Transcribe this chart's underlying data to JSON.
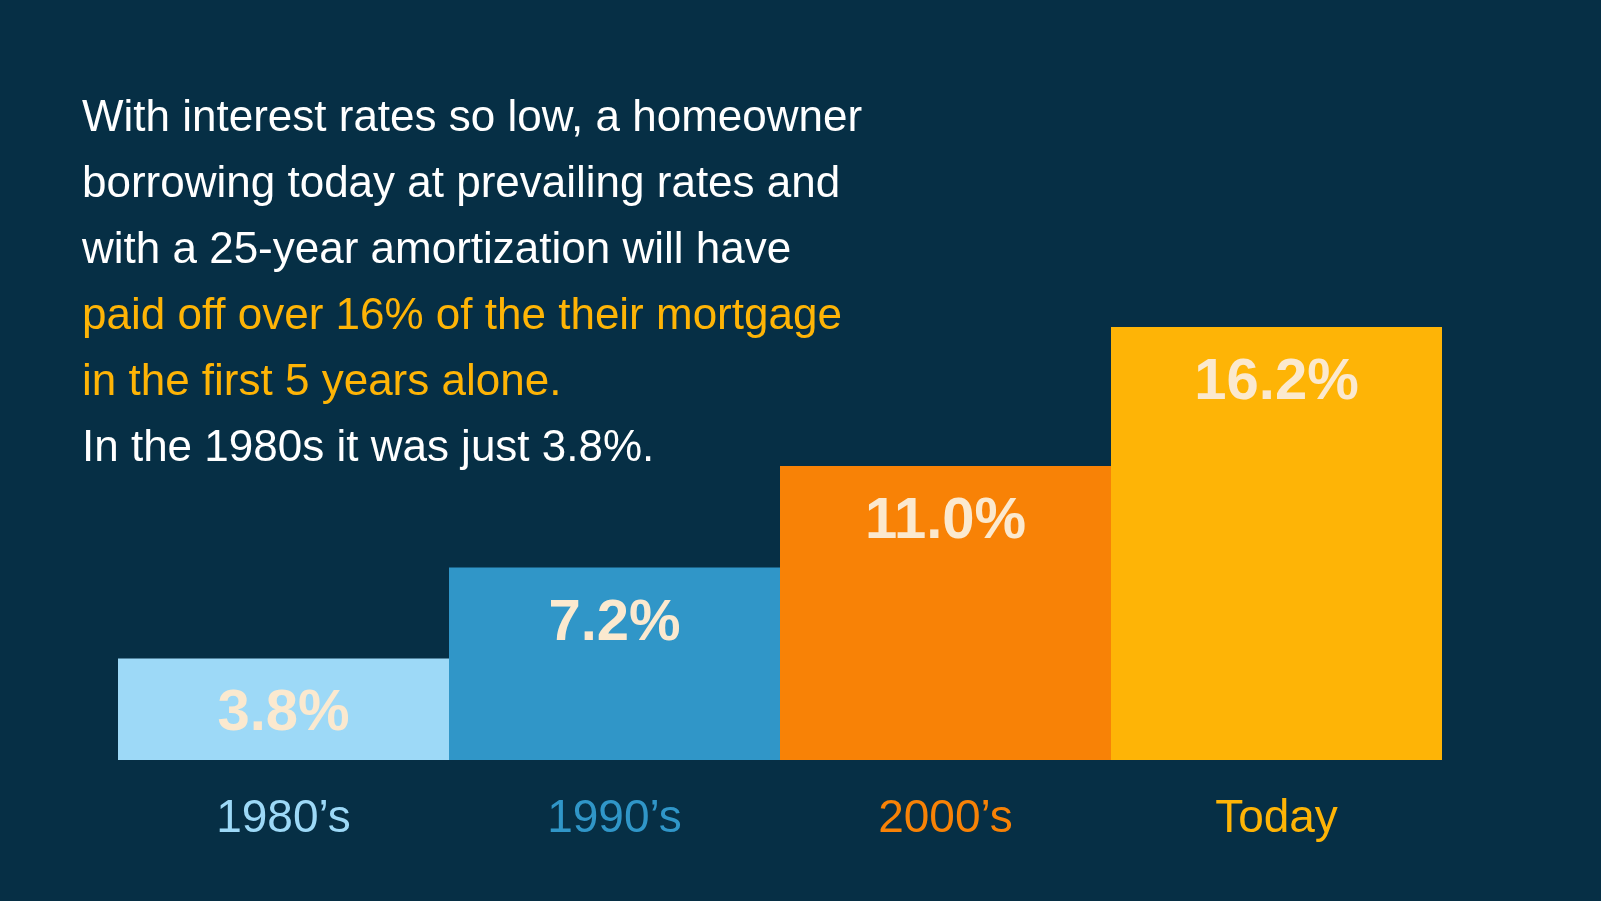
{
  "chart_data": {
    "type": "bar",
    "categories": [
      "1980’s",
      "1990’s",
      "2000’s",
      "Today"
    ],
    "values": [
      3.8,
      7.2,
      11.0,
      16.2
    ],
    "colors": [
      "#9dd9f7",
      "#3096c8",
      "#f88206",
      "#feb406"
    ],
    "value_labels": [
      "3.8%",
      "7.2%",
      "11.0%",
      "16.2%"
    ],
    "annotations": [
      "With interest rates so low, a homeowner borrowing today at prevailing rates and with a 25-year amortization will have",
      "paid off over 16% of the their mortgage in the first 5 years alone.",
      "In the 1980s it was just 3.8%."
    ]
  }
}
